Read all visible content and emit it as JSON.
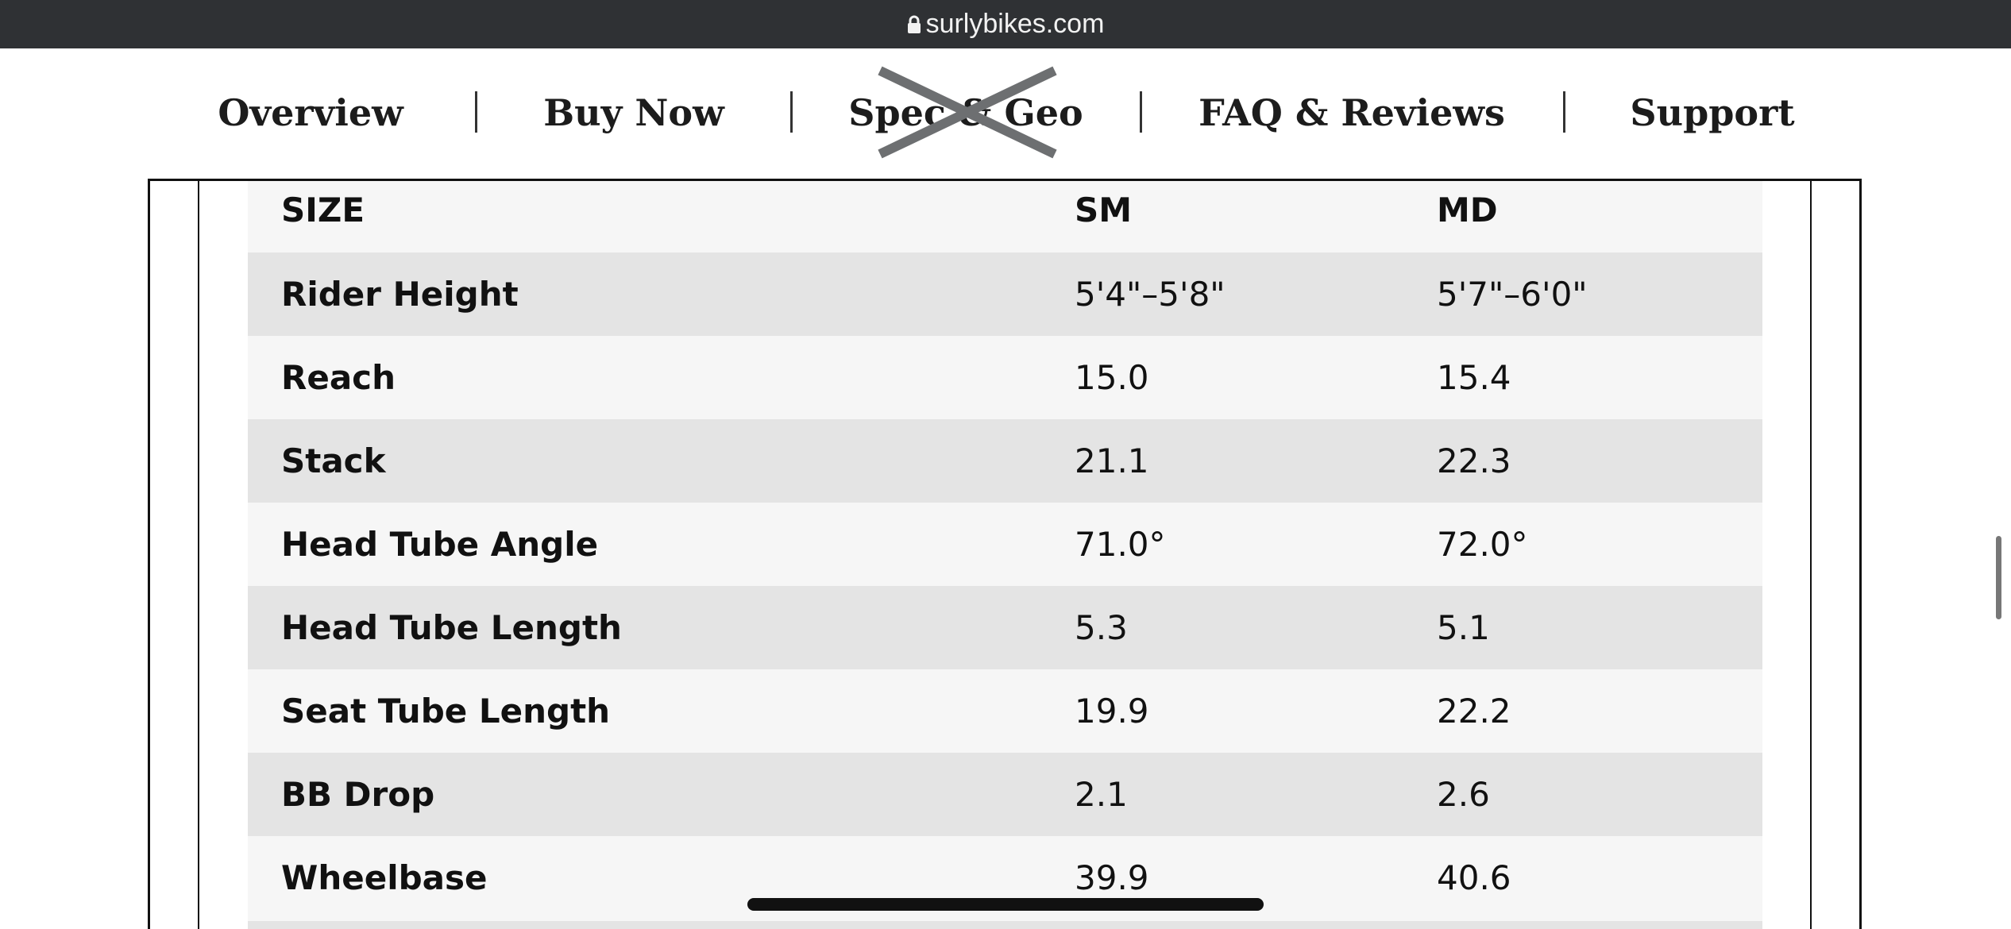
{
  "browser": {
    "url": "surlybikes.com"
  },
  "nav": [
    "Overview",
    "Buy Now",
    "Spec & Geo",
    "FAQ & Reviews",
    "Support"
  ],
  "table": {
    "header": [
      "SIZE",
      "SM",
      "MD"
    ],
    "rows": [
      [
        "Rider Height",
        "5'4\"–5'8\"",
        "5'7\"–6'0\""
      ],
      [
        "Reach",
        "15.0",
        "15.4"
      ],
      [
        "Stack",
        "21.1",
        "22.3"
      ],
      [
        "Head Tube Angle",
        "71.0°",
        "72.0°"
      ],
      [
        "Head Tube Length",
        "5.3",
        "5.1"
      ],
      [
        "Seat Tube Length",
        "19.9",
        "22.2"
      ],
      [
        "BB Drop",
        "2.1",
        "2.6"
      ],
      [
        "Wheelbase",
        "39.9",
        "40.6"
      ]
    ]
  }
}
